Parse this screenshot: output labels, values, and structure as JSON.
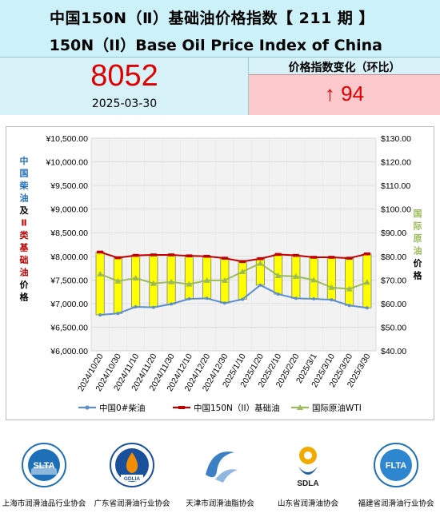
{
  "header": {
    "title_cn": "中国150N（Ⅱ）基础油价格指数【    211 期  】",
    "title_en": "150N（II）Base Oil Price Index of China"
  },
  "index": {
    "value": "8052",
    "date": "2025-03-30",
    "change_label": "价格指数变化（环比）",
    "change_value": "↑ 94"
  },
  "chart_data": {
    "type": "bar",
    "categories": [
      "2024/10/20",
      "2024/10/30",
      "2024/11/10",
      "2024/11/20",
      "2024/11/30",
      "2024/12/10",
      "2024/12/20",
      "2024/12/30",
      "2025/1/10",
      "2025/1/20",
      "2025/2/10",
      "2025/2/20",
      "2025/3/1",
      "2025/3/10",
      "2025/3/20",
      "2025/3/30"
    ],
    "series": [
      {
        "name": "中国0#柴油",
        "kind": "line",
        "axis": "left",
        "color": "#5b8fd0",
        "values": [
          6760,
          6790,
          6930,
          6920,
          6990,
          7100,
          7110,
          7010,
          7090,
          7390,
          7200,
          7110,
          7100,
          7080,
          6960,
          6910
        ]
      },
      {
        "name": "中国150N（II）基础油",
        "kind": "line",
        "axis": "left",
        "color": "#c00000",
        "values": [
          8090,
          7970,
          8020,
          8030,
          8030,
          8010,
          8000,
          7960,
          7890,
          7950,
          8040,
          8020,
          7980,
          7980,
          7960,
          8052
        ]
      },
      {
        "name": "国际原油WTI",
        "kind": "line",
        "axis": "right",
        "color": "#9bbb59",
        "values": [
          72.5,
          69.5,
          70.8,
          68.5,
          69.2,
          68.2,
          69.8,
          69.8,
          73.5,
          77.0,
          71.8,
          71.5,
          70.0,
          66.8,
          66.2,
          69.0
        ]
      }
    ],
    "bars_color": "#ffff00",
    "left_axis": {
      "ticks": [
        "¥10,500.00",
        "¥10,000.00",
        "¥9,500.00",
        "¥9,000.00",
        "¥8,500.00",
        "¥8,000.00",
        "¥7,500.00",
        "¥7,000.00",
        "¥6,500.00",
        "¥6,000.00"
      ],
      "ylim": [
        6000,
        10500
      ]
    },
    "right_axis": {
      "ticks": [
        "$130.00",
        "$120.00",
        "$110.00",
        "$100.00",
        "$90.00",
        "$80.00",
        "$70.00",
        "$60.00",
        "$50.00",
        "$40.00"
      ],
      "ylim": [
        40,
        130
      ]
    },
    "left_axis_title": [
      "中",
      "国",
      "柴",
      "油",
      "及",
      "Ⅱ",
      "类",
      "基",
      "础",
      "油",
      "价",
      "格"
    ],
    "right_axis_title": [
      "国",
      "际",
      "原",
      "油",
      "价",
      "格"
    ],
    "legend_position": "bottom",
    "legend": [
      "中国0#柴油",
      "中国150N（II）基础油",
      "国际原油WTI"
    ]
  },
  "footer": {
    "associations": [
      {
        "name": "上海市润滑油品行业协会",
        "logo": "SLTA"
      },
      {
        "name": "广东省润滑油行业协会",
        "logo": "GDLIA"
      },
      {
        "name": "天津市润滑油脂协会",
        "logo": "tianjin-swirl-icon"
      },
      {
        "name": "山东省润滑油协会",
        "logo": "SDLA"
      },
      {
        "name": "福建省润滑油行业协会",
        "logo": "FLTA"
      }
    ]
  },
  "colors": {
    "header_bg": "#ccf1f8",
    "accent_red": "#e00000",
    "change_bg": "#fbc8cc"
  }
}
